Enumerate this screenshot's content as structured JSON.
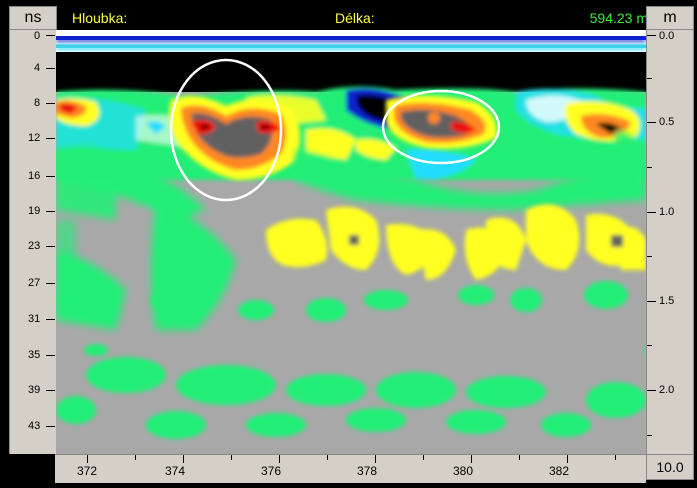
{
  "header": {
    "left_unit": "ns",
    "right_unit": "m",
    "depth_label": "Hloubka:",
    "length_label": "Délka:",
    "position_value": "594.23 m"
  },
  "left_axis": {
    "ticks": [
      "0",
      "4",
      "8",
      "12",
      "16",
      "19",
      "23",
      "27",
      "31",
      "35",
      "39",
      "43"
    ]
  },
  "right_axis": {
    "ticks": [
      "0.0",
      "0.5",
      "1.0",
      "1.5",
      "2.0"
    ]
  },
  "bottom_axis": {
    "ticks": [
      "372",
      "374",
      "376",
      "378",
      "380",
      "382"
    ],
    "end_value": "10.0"
  },
  "colors": {
    "background": "#000000",
    "panel": "#d4d0c8",
    "header_text": "#ffff40",
    "position_text": "#33ee33",
    "signal_gray": "#a8a8a8",
    "signal_green": "#22ee77",
    "signal_yellow": "#ffff22",
    "signal_orange": "#ff8822",
    "signal_red": "#ee1111",
    "signal_cyan": "#22ddff",
    "signal_blue": "#1122cc",
    "highlight_ellipse": "#ffffff"
  }
}
